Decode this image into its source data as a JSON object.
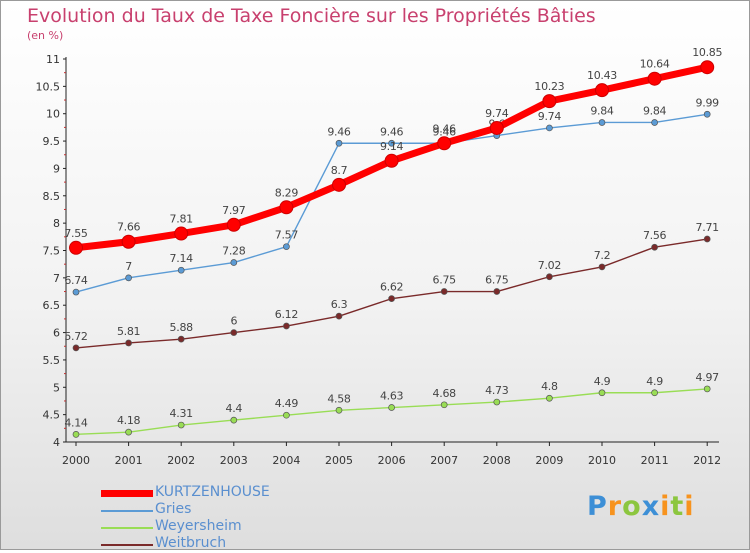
{
  "chart_data": {
    "type": "line",
    "title": "Evolution du Taux de Taxe Foncière sur les Propriétés Bâties",
    "subtitle": "(en %)",
    "x": [
      "2000",
      "2001",
      "2002",
      "2003",
      "2004",
      "2005",
      "2006",
      "2007",
      "2008",
      "2009",
      "2010",
      "2011",
      "2012"
    ],
    "ylim": [
      4,
      11
    ],
    "yticks": [
      "4",
      "4.5",
      "5",
      "5.5",
      "6",
      "6.5",
      "7",
      "7.5",
      "8",
      "8.5",
      "9",
      "9.5",
      "10",
      "10.5",
      "11"
    ],
    "grid": false,
    "legend_position": "bottom-left",
    "series": [
      {
        "name": "KURTZENHOUSE",
        "color": "#ff0000",
        "values": [
          7.55,
          7.66,
          7.81,
          7.97,
          8.29,
          8.7,
          9.14,
          9.46,
          9.74,
          10.23,
          10.43,
          10.64,
          10.85
        ],
        "labels": [
          "7.55",
          "7.66",
          "7.81",
          "7.97",
          "8.29",
          "8.7",
          "9.14",
          "9.46",
          "9.74",
          "10.23",
          "10.43",
          "10.64",
          "10.85"
        ]
      },
      {
        "name": "Gries",
        "color": "#5b9bd5",
        "values": [
          6.74,
          7,
          7.14,
          7.28,
          7.57,
          9.46,
          9.46,
          9.46,
          9.6,
          9.74,
          9.84,
          9.84,
          9.99
        ],
        "labels": [
          "6.74",
          "7",
          "7.14",
          "7.28",
          "7.57",
          "9.46",
          "9.46",
          "9.46",
          "9.6",
          "9.74",
          "9.84",
          "9.84",
          "9.99"
        ]
      },
      {
        "name": "Weyersheim",
        "color": "#99dd55",
        "values": [
          4.14,
          4.18,
          4.31,
          4.4,
          4.49,
          4.58,
          4.63,
          4.68,
          4.73,
          4.8,
          4.9,
          4.9,
          4.97
        ],
        "labels": [
          "4.14",
          "4.18",
          "4.31",
          "4.4",
          "4.49",
          "4.58",
          "4.63",
          "4.68",
          "4.73",
          "4.8",
          "4.9",
          "4.9",
          "4.97"
        ]
      },
      {
        "name": "Weitbruch",
        "color": "#7a2a2a",
        "values": [
          5.72,
          5.81,
          5.88,
          6,
          6.12,
          6.3,
          6.62,
          6.75,
          6.75,
          7.02,
          7.2,
          7.56,
          7.71
        ],
        "labels": [
          "5.72",
          "5.81",
          "5.88",
          "6",
          "6.12",
          "6.3",
          "6.62",
          "6.75",
          "6.75",
          "7.02",
          "7.2",
          "7.56",
          "7.71"
        ]
      }
    ]
  },
  "logo": {
    "letters": [
      "P",
      "r",
      "o",
      "x",
      "i",
      "t",
      "i"
    ],
    "colors": [
      "#3d8fd6",
      "#f7931e",
      "#8cc63f",
      "#3d8fd6",
      "#f7931e",
      "#8cc63f",
      "#f7931e"
    ]
  }
}
